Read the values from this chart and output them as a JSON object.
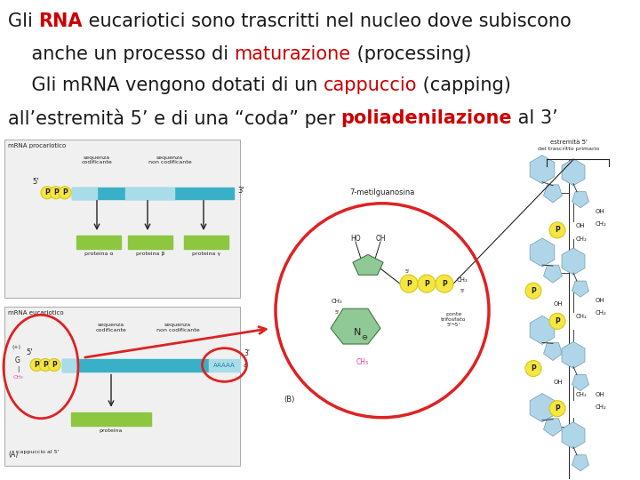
{
  "background_color": "#ffffff",
  "title_lines": [
    {
      "segments": [
        {
          "text": "Gli ",
          "color": "#1a1a1a",
          "bold": false
        },
        {
          "text": "RNA",
          "color": "#cc0000",
          "bold": true
        },
        {
          "text": " eucariotici sono trascritti nel nucleo dove subiscono",
          "color": "#1a1a1a",
          "bold": false
        }
      ],
      "align": "left"
    },
    {
      "segments": [
        {
          "text": "    anche un processo di ",
          "color": "#1a1a1a",
          "bold": false
        },
        {
          "text": "maturazione",
          "color": "#cc0000",
          "bold": false
        },
        {
          "text": " (processing)",
          "color": "#1a1a1a",
          "bold": false
        }
      ],
      "align": "left"
    },
    {
      "segments": [
        {
          "text": "    Gli mRNA vengono dotati di un ",
          "color": "#1a1a1a",
          "bold": false
        },
        {
          "text": "cappuccio",
          "color": "#cc0000",
          "bold": false
        },
        {
          "text": " (capping)",
          "color": "#1a1a1a",
          "bold": false
        }
      ],
      "align": "left"
    },
    {
      "segments": [
        {
          "text": "all’estremità 5’ e di una “coda” per ",
          "color": "#1a1a1a",
          "bold": false
        },
        {
          "text": "poliadenilazione",
          "color": "#cc0000",
          "bold": true
        },
        {
          "text": " al 3’",
          "color": "#1a1a1a",
          "bold": false
        }
      ],
      "align": "left"
    }
  ],
  "font_size": 15,
  "font_family": "DejaVu Sans",
  "figsize": [
    7.2,
    5.4
  ],
  "dpi": 100,
  "diagram": {
    "cyan": "#5bc8d8",
    "cyan_dark": "#3ab0c8",
    "cyan_light": "#a8dce8",
    "green": "#8dc63f",
    "yellow": "#f5e642",
    "yellow_dark": "#d4c820",
    "light_blue": "#aed6e8",
    "light_blue2": "#c8e4f0",
    "gray_bg": "#f0f0f0",
    "gray_border": "#aaaaaa",
    "red": "#dd2222",
    "magenta": "#dd44aa",
    "dark": "#222222",
    "medium": "#555555"
  }
}
